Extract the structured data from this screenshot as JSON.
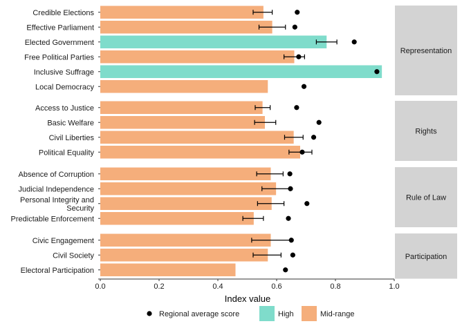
{
  "chart_data": {
    "type": "bar",
    "orientation": "horizontal",
    "xlabel": "Index value",
    "xlim": [
      0,
      1
    ],
    "x_ticks": [
      "0.0",
      "0.2",
      "0.4",
      "0.6",
      "0.8",
      "1.0"
    ],
    "grid": false,
    "legend_position": "bottom",
    "legend": [
      {
        "key": "avg",
        "label": "Regional average score",
        "marker": "point",
        "color": "#000000"
      },
      {
        "key": "High",
        "label": "High",
        "marker": "fill",
        "color": "#7fdccb"
      },
      {
        "key": "Mid-range",
        "label": "Mid-range",
        "marker": "fill",
        "color": "#f5ae7b"
      }
    ],
    "panels": [
      {
        "label": "Representation",
        "rows": [
          {
            "label": "Credible Elections",
            "value": 0.555,
            "err": [
              0.52,
              0.585
            ],
            "avg": 0.67,
            "level": "Mid-range"
          },
          {
            "label": "Effective Parliament",
            "value": 0.585,
            "err": [
              0.54,
              0.63
            ],
            "avg": 0.662,
            "level": "Mid-range"
          },
          {
            "label": "Elected Government",
            "value": 0.77,
            "err": [
              0.735,
              0.805
            ],
            "avg": 0.864,
            "level": "High"
          },
          {
            "label": "Free Political Parties",
            "value": 0.66,
            "err": [
              0.625,
              0.695
            ],
            "avg": 0.675,
            "level": "Mid-range"
          },
          {
            "label": "Inclusive Suffrage",
            "value": 0.958,
            "err": null,
            "avg": 0.941,
            "level": "High"
          },
          {
            "label": "Local Democracy",
            "value": 0.57,
            "err": null,
            "avg": 0.693,
            "level": "Mid-range"
          }
        ]
      },
      {
        "label": "Rights",
        "rows": [
          {
            "label": "Access to Justice",
            "value": 0.552,
            "err": [
              0.527,
              0.578
            ],
            "avg": 0.668,
            "level": "Mid-range"
          },
          {
            "label": "Basic Welfare",
            "value": 0.56,
            "err": [
              0.525,
              0.597
            ],
            "avg": 0.744,
            "level": "Mid-range"
          },
          {
            "label": "Civil Liberties",
            "value": 0.658,
            "err": [
              0.627,
              0.69
            ],
            "avg": 0.726,
            "level": "Mid-range"
          },
          {
            "label": "Political Equality",
            "value": 0.68,
            "err": [
              0.642,
              0.72
            ],
            "avg": 0.687,
            "level": "Mid-range"
          }
        ]
      },
      {
        "label": "Rule of Law",
        "rows": [
          {
            "label": "Absence of Corruption",
            "value": 0.58,
            "err": [
              0.532,
              0.622
            ],
            "avg": 0.645,
            "level": "Mid-range"
          },
          {
            "label": "Judicial Independence",
            "value": 0.598,
            "err": [
              0.55,
              0.645
            ],
            "avg": 0.647,
            "level": "Mid-range"
          },
          {
            "label": "Personal Integrity and Security",
            "value": 0.583,
            "err": [
              0.535,
              0.625
            ],
            "avg": 0.703,
            "level": "Mid-range"
          },
          {
            "label": "Predictable Enforcement",
            "value": 0.522,
            "err": [
              0.485,
              0.555
            ],
            "avg": 0.64,
            "level": "Mid-range"
          }
        ]
      },
      {
        "label": "Participation",
        "rows": [
          {
            "label": "Civic Engagement",
            "value": 0.58,
            "err": [
              0.515,
              0.648
            ],
            "avg": 0.65,
            "level": "Mid-range"
          },
          {
            "label": "Civil Society",
            "value": 0.57,
            "err": [
              0.52,
              0.615
            ],
            "avg": 0.655,
            "level": "Mid-range"
          },
          {
            "label": "Electoral Participation",
            "value": 0.46,
            "err": null,
            "avg": 0.63,
            "level": "Mid-range"
          }
        ]
      }
    ]
  }
}
